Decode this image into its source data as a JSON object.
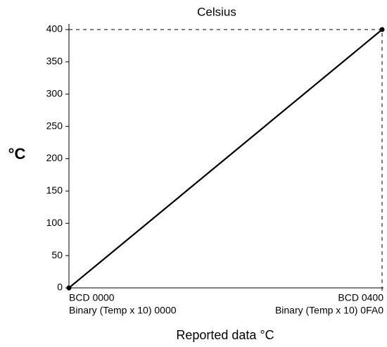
{
  "chart_data": {
    "type": "line",
    "title": "Celsius",
    "y_label": "°C",
    "x_label": "Reported data °C",
    "x": [
      0,
      400
    ],
    "series": [
      {
        "color": "#000000",
        "values": [
          0,
          400
        ]
      }
    ],
    "xlim": [
      0,
      400
    ],
    "ylim": [
      0,
      400
    ],
    "xticks": [
      {
        "value": 0,
        "label": "BCD 0000"
      },
      {
        "value": 400,
        "label": "BCD 0400"
      }
    ],
    "xticks_binary": [
      {
        "value": 0,
        "label": "Binary (Temp x 10) 0000"
      },
      {
        "value": 400,
        "label": "Binary (Temp x 10) 0FA0"
      }
    ],
    "yticks": [
      0,
      50,
      100,
      150,
      200,
      250,
      300,
      350,
      400
    ]
  }
}
